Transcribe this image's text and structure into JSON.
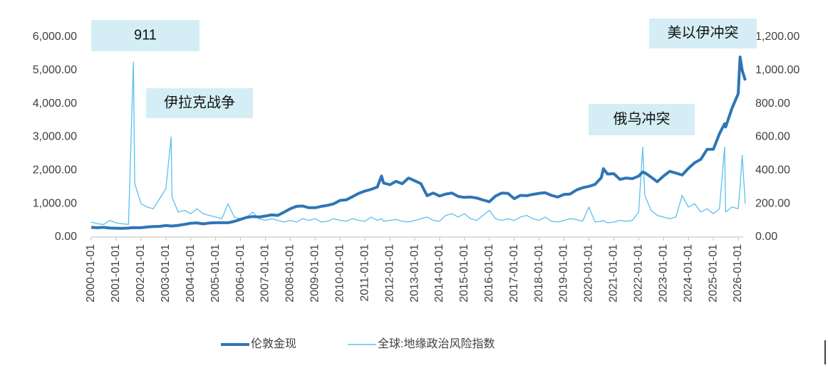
{
  "chart_data": {
    "type": "line",
    "x": [
      "2000-01-01",
      "2000-04-01",
      "2000-07-01",
      "2000-10-01",
      "2001-01-01",
      "2001-04-01",
      "2001-07-01",
      "2001-09-11",
      "2001-10-01",
      "2002-01-01",
      "2002-04-01",
      "2002-07-01",
      "2002-10-01",
      "2003-01-01",
      "2003-03-20",
      "2003-04-01",
      "2003-07-01",
      "2003-10-01",
      "2004-01-01",
      "2004-04-01",
      "2004-07-01",
      "2004-10-01",
      "2005-01-01",
      "2005-04-01",
      "2005-07-01",
      "2005-10-01",
      "2006-01-01",
      "2006-04-01",
      "2006-07-01",
      "2006-10-01",
      "2007-01-01",
      "2007-04-01",
      "2007-07-01",
      "2007-10-01",
      "2008-01-01",
      "2008-04-01",
      "2008-07-01",
      "2008-10-01",
      "2009-01-01",
      "2009-04-01",
      "2009-07-01",
      "2009-10-01",
      "2010-01-01",
      "2010-04-01",
      "2010-07-01",
      "2010-10-01",
      "2011-01-01",
      "2011-04-01",
      "2011-07-01",
      "2011-09-01",
      "2011-10-01",
      "2012-01-01",
      "2012-04-01",
      "2012-07-01",
      "2012-10-01",
      "2013-01-01",
      "2013-04-01",
      "2013-07-01",
      "2013-10-01",
      "2014-01-01",
      "2014-04-01",
      "2014-07-01",
      "2014-10-01",
      "2015-01-01",
      "2015-04-01",
      "2015-07-01",
      "2015-10-01",
      "2016-01-01",
      "2016-04-01",
      "2016-07-01",
      "2016-10-01",
      "2017-01-01",
      "2017-04-01",
      "2017-07-01",
      "2017-10-01",
      "2018-01-01",
      "2018-04-01",
      "2018-07-01",
      "2018-10-01",
      "2019-01-01",
      "2019-04-01",
      "2019-07-01",
      "2019-10-01",
      "2020-01-01",
      "2020-04-01",
      "2020-07-01",
      "2020-08-01",
      "2020-10-01",
      "2021-01-01",
      "2021-04-01",
      "2021-07-01",
      "2021-10-01",
      "2022-01-01",
      "2022-03-01",
      "2022-04-01",
      "2022-07-01",
      "2022-10-01",
      "2023-01-01",
      "2023-04-01",
      "2023-07-01",
      "2023-10-01",
      "2024-01-01",
      "2024-04-01",
      "2024-07-01",
      "2024-10-01",
      "2025-01-01",
      "2025-04-01",
      "2025-06-15",
      "2025-07-01",
      "2025-10-01",
      "2026-01-01",
      "2026-01-28",
      "2026-03-01",
      "2026-04-15"
    ],
    "series": [
      {
        "name": "伦敦金现",
        "color": "#2e75b6",
        "axis": "y",
        "values": [
          290,
          280,
          290,
          270,
          265,
          260,
          270,
          285,
          280,
          280,
          300,
          315,
          320,
          345,
          330,
          330,
          350,
          380,
          415,
          425,
          395,
          420,
          430,
          430,
          430,
          470,
          530,
          590,
          615,
          600,
          630,
          665,
          650,
          745,
          850,
          920,
          930,
          880,
          880,
          920,
          950,
          1000,
          1100,
          1115,
          1210,
          1310,
          1380,
          1430,
          1500,
          1830,
          1620,
          1570,
          1670,
          1600,
          1770,
          1690,
          1600,
          1240,
          1320,
          1230,
          1290,
          1320,
          1220,
          1190,
          1200,
          1170,
          1110,
          1060,
          1230,
          1320,
          1310,
          1150,
          1250,
          1240,
          1280,
          1310,
          1330,
          1250,
          1200,
          1280,
          1290,
          1410,
          1480,
          1520,
          1580,
          1780,
          2050,
          1890,
          1900,
          1730,
          1770,
          1750,
          1830,
          1950,
          1930,
          1800,
          1660,
          1830,
          1970,
          1920,
          1860,
          2060,
          2230,
          2330,
          2630,
          2630,
          3100,
          3400,
          3300,
          3860,
          4300,
          5400,
          5000,
          4700
        ]
      },
      {
        "name": "全球:地缘政治风险指数",
        "color": "#5bc0eb",
        "axis": "y2",
        "values": [
          90,
          80,
          75,
          100,
          85,
          80,
          75,
          1050,
          320,
          200,
          180,
          170,
          230,
          290,
          600,
          240,
          150,
          160,
          140,
          170,
          140,
          130,
          120,
          110,
          200,
          120,
          110,
          120,
          150,
          110,
          100,
          110,
          100,
          90,
          100,
          90,
          110,
          100,
          110,
          90,
          95,
          110,
          100,
          95,
          110,
          100,
          95,
          120,
          100,
          110,
          95,
          100,
          105,
          95,
          90,
          100,
          110,
          120,
          100,
          95,
          130,
          140,
          120,
          140,
          110,
          100,
          130,
          160,
          110,
          100,
          110,
          100,
          120,
          130,
          110,
          100,
          120,
          95,
          90,
          100,
          110,
          105,
          95,
          180,
          90,
          95,
          100,
          85,
          90,
          100,
          95,
          100,
          150,
          540,
          250,
          160,
          130,
          120,
          110,
          120,
          250,
          180,
          200,
          150,
          170,
          140,
          170,
          540,
          150,
          180,
          170,
          300,
          490,
          200
        ]
      }
    ],
    "xlim": [
      "2000-01-01",
      "2026-05-01"
    ],
    "xticks": [
      "2000-01-01",
      "2001-01-01",
      "2002-01-01",
      "2003-01-01",
      "2004-01-01",
      "2005-01-01",
      "2006-01-01",
      "2007-01-01",
      "2008-01-01",
      "2009-01-01",
      "2010-01-01",
      "2011-01-01",
      "2012-01-01",
      "2013-01-01",
      "2014-01-01",
      "2015-01-01",
      "2016-01-01",
      "2017-01-01",
      "2018-01-01",
      "2019-01-01",
      "2020-01-01",
      "2021-01-01",
      "2022-01-01",
      "2023-01-01",
      "2024-01-01",
      "2025-01-01",
      "2026-01-01"
    ],
    "ylim": [
      0,
      6000
    ],
    "yticks": [
      {
        "value": 0,
        "label": "0.00"
      },
      {
        "value": 1000,
        "label": "1,000.00"
      },
      {
        "value": 2000,
        "label": "2,000.00"
      },
      {
        "value": 3000,
        "label": "3,000.00"
      },
      {
        "value": 4000,
        "label": "4,000.00"
      },
      {
        "value": 5000,
        "label": "5,000.00"
      },
      {
        "value": 6000,
        "label": "6,000.00"
      }
    ],
    "y2lim": [
      0,
      1200
    ],
    "y2ticks": [
      {
        "value": 0,
        "label": "0.00"
      },
      {
        "value": 200,
        "label": "200.00"
      },
      {
        "value": 400,
        "label": "400.00"
      },
      {
        "value": 600,
        "label": "600.00"
      },
      {
        "value": 800,
        "label": "800.00"
      },
      {
        "value": 1000,
        "label": "1,000.00"
      },
      {
        "value": 1200,
        "label": "1,200.00"
      }
    ],
    "annotations": [
      "911",
      "伊拉克战争",
      "俄乌冲突",
      "美以伊冲突"
    ],
    "legend": "bottom"
  }
}
